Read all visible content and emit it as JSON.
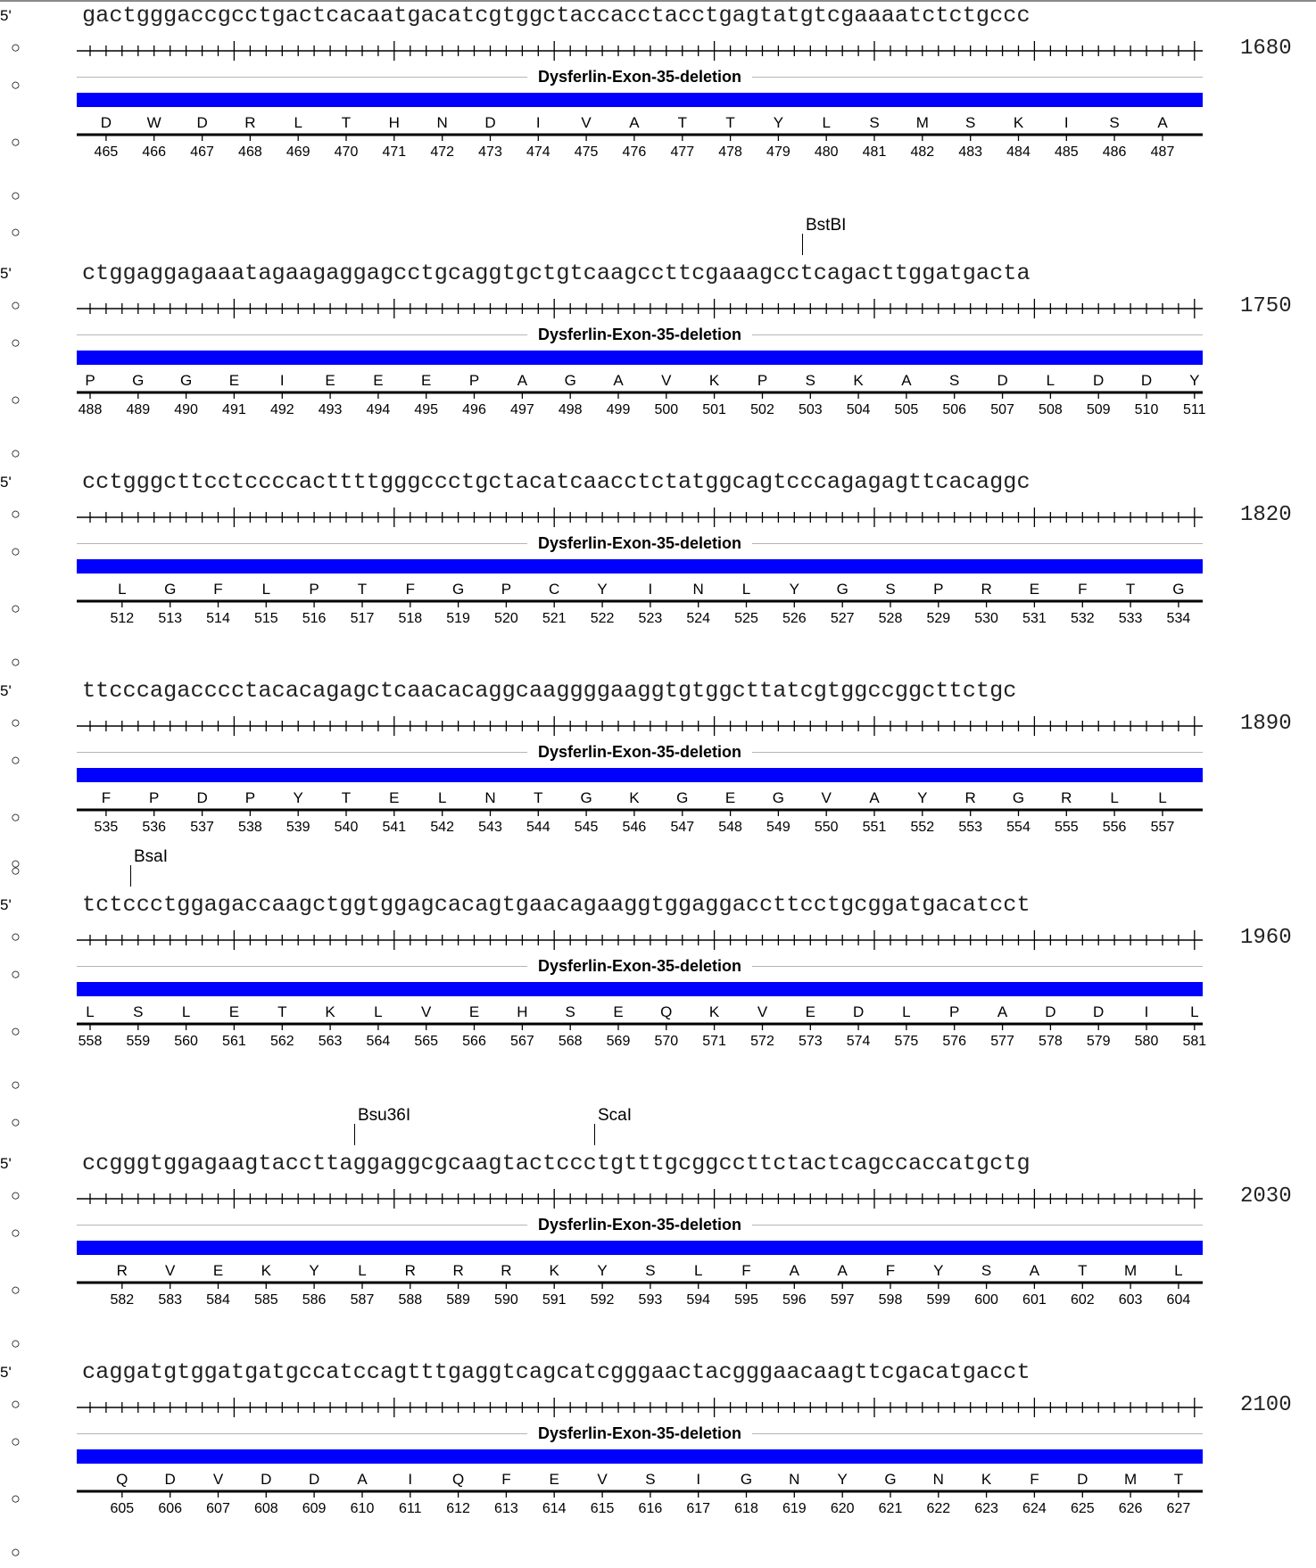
{
  "strand_label": "5'",
  "blocks": [
    {
      "seq": "gactgggaccgcctgactcacaatgacatcgtggctaccacctacctgagtatgtcgaaaatctctgccc",
      "end_pos": "1680",
      "feature": "Dysferlin-Exon-35-deletion",
      "frame": 0,
      "sites": [],
      "aa": [
        "D",
        "W",
        "D",
        "R",
        "L",
        "T",
        "H",
        "N",
        "D",
        "I",
        "V",
        "A",
        "T",
        "T",
        "Y",
        "L",
        "S",
        "M",
        "S",
        "K",
        "I",
        "S",
        "A"
      ],
      "nums": [
        "465",
        "466",
        "467",
        "468",
        "469",
        "470",
        "471",
        "472",
        "473",
        "474",
        "475",
        "476",
        "477",
        "478",
        "479",
        "480",
        "481",
        "482",
        "483",
        "484",
        "485",
        "486",
        "487"
      ]
    },
    {
      "seq": "ctggaggagaaatagaagaggagcctgcaggtgctgtcaagccttcgaaagcctcagacttggatgacta",
      "end_pos": "1750",
      "feature": "Dysferlin-Exon-35-deletion",
      "frame": -1,
      "sites": [
        {
          "name": "BstBI",
          "at": 45
        }
      ],
      "aa": [
        "P",
        "G",
        "G",
        "E",
        "I",
        "E",
        "E",
        "E",
        "P",
        "A",
        "G",
        "A",
        "V",
        "K",
        "P",
        "S",
        "K",
        "A",
        "S",
        "D",
        "L",
        "D",
        "D",
        "Y"
      ],
      "nums": [
        "488",
        "489",
        "490",
        "491",
        "492",
        "493",
        "494",
        "495",
        "496",
        "497",
        "498",
        "499",
        "500",
        "501",
        "502",
        "503",
        "504",
        "505",
        "506",
        "507",
        "508",
        "509",
        "510",
        "511"
      ]
    },
    {
      "seq": "cctgggcttcctccccacttttgggccctgctacatcaacctctatggcagtcccagagagttcacaggc",
      "end_pos": "1820",
      "feature": "Dysferlin-Exon-35-deletion",
      "frame": 1,
      "sites": [],
      "aa": [
        "L",
        "G",
        "F",
        "L",
        "P",
        "T",
        "F",
        "G",
        "P",
        "C",
        "Y",
        "I",
        "N",
        "L",
        "Y",
        "G",
        "S",
        "P",
        "R",
        "E",
        "F",
        "T",
        "G"
      ],
      "nums": [
        "512",
        "513",
        "514",
        "515",
        "516",
        "517",
        "518",
        "519",
        "520",
        "521",
        "522",
        "523",
        "524",
        "525",
        "526",
        "527",
        "528",
        "529",
        "530",
        "531",
        "532",
        "533",
        "534"
      ]
    },
    {
      "seq": "ttcccagacccctacacagagctcaacacaggcaaggggaaggtgtggcttatcgtggccggcttctgc",
      "end_pos": "1890",
      "feature": "Dysferlin-Exon-35-deletion",
      "frame": 0,
      "sites": [],
      "aa": [
        "F",
        "P",
        "D",
        "P",
        "Y",
        "T",
        "E",
        "L",
        "N",
        "T",
        "G",
        "K",
        "G",
        "E",
        "G",
        "V",
        "A",
        "Y",
        "R",
        "G",
        "R",
        "L",
        "L"
      ],
      "nums": [
        "535",
        "536",
        "537",
        "538",
        "539",
        "540",
        "541",
        "542",
        "543",
        "544",
        "545",
        "546",
        "547",
        "548",
        "549",
        "550",
        "551",
        "552",
        "553",
        "554",
        "555",
        "556",
        "557"
      ]
    },
    {
      "seq": "tctccctggagaccaagctggtggagcacagtgaacagaaggtggaggaccttcctgcggatgacatcct",
      "end_pos": "1960",
      "feature": "Dysferlin-Exon-35-deletion",
      "frame": -1,
      "sites": [
        {
          "name": "BsaI",
          "at": 3
        }
      ],
      "aa": [
        "L",
        "S",
        "L",
        "E",
        "T",
        "K",
        "L",
        "V",
        "E",
        "H",
        "S",
        "E",
        "Q",
        "K",
        "V",
        "E",
        "D",
        "L",
        "P",
        "A",
        "D",
        "D",
        "I",
        "L"
      ],
      "nums": [
        "558",
        "559",
        "560",
        "561",
        "562",
        "563",
        "564",
        "565",
        "566",
        "567",
        "568",
        "569",
        "570",
        "571",
        "572",
        "573",
        "574",
        "575",
        "576",
        "577",
        "578",
        "579",
        "580",
        "581"
      ]
    },
    {
      "seq": "ccgggtggagaagtaccttaggaggcgcaagtactccctgtttgcggccttctactcagccaccatgctg",
      "end_pos": "2030",
      "feature": "Dysferlin-Exon-35-deletion",
      "frame": 1,
      "sites": [
        {
          "name": "Bsu36I",
          "at": 17
        },
        {
          "name": "ScaI",
          "at": 32
        }
      ],
      "aa": [
        "R",
        "V",
        "E",
        "K",
        "Y",
        "L",
        "R",
        "R",
        "R",
        "K",
        "Y",
        "S",
        "L",
        "F",
        "A",
        "A",
        "F",
        "Y",
        "S",
        "A",
        "T",
        "M",
        "L"
      ],
      "nums": [
        "582",
        "583",
        "584",
        "585",
        "586",
        "587",
        "588",
        "589",
        "590",
        "591",
        "592",
        "593",
        "594",
        "595",
        "596",
        "597",
        "598",
        "599",
        "600",
        "601",
        "602",
        "603",
        "604"
      ]
    },
    {
      "seq": "caggatgtggatgatgccatccagtttgaggtcagcatcgggaactacgggaacaagttcgacatgacct",
      "end_pos": "2100",
      "feature": "Dysferlin-Exon-35-deletion",
      "frame": 1,
      "sites": [],
      "aa": [
        "Q",
        "D",
        "V",
        "D",
        "D",
        "A",
        "I",
        "Q",
        "F",
        "E",
        "V",
        "S",
        "I",
        "G",
        "N",
        "Y",
        "G",
        "N",
        "K",
        "F",
        "D",
        "M",
        "T"
      ],
      "nums": [
        "605",
        "606",
        "607",
        "608",
        "609",
        "610",
        "611",
        "612",
        "613",
        "614",
        "615",
        "616",
        "617",
        "618",
        "619",
        "620",
        "621",
        "622",
        "623",
        "624",
        "625",
        "626",
        "627"
      ]
    }
  ]
}
